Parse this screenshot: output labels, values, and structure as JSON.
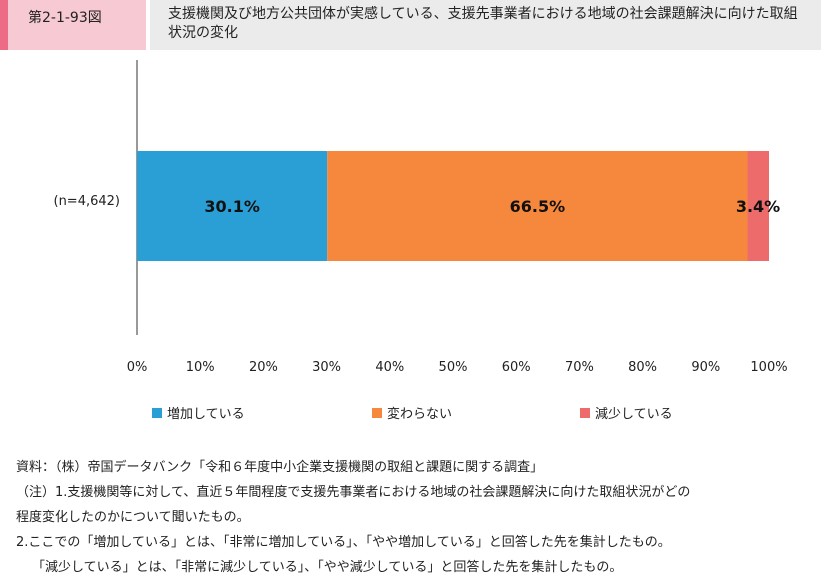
{
  "figure_number": "第2-1-93図",
  "title": "支援機関及び地方公共団体が実感している、支援先事業者における地域の社会課題解決に向けた取組状況の変化",
  "colors": {
    "increase": "#2a9fd6",
    "unchanged": "#f5883c",
    "decrease": "#ee6b6b"
  },
  "chart_data": {
    "type": "bar",
    "orientation": "horizontal",
    "stacked": true,
    "categories": [
      "(n=4,642)"
    ],
    "series": [
      {
        "name": "増加している",
        "values": [
          30.1
        ],
        "label": "30.1%"
      },
      {
        "name": "変わらない",
        "values": [
          66.5
        ],
        "label": "66.5%"
      },
      {
        "name": "減少している",
        "values": [
          3.4
        ],
        "label": "3.4%"
      }
    ],
    "xlim": [
      0,
      100
    ],
    "x_ticks": [
      "0%",
      "10%",
      "20%",
      "30%",
      "40%",
      "50%",
      "60%",
      "70%",
      "80%",
      "90%",
      "100%"
    ],
    "grid": false,
    "legend_position": "bottom"
  },
  "notes": [
    "資料：（株）帝国データバンク「令和６年度中小企業支援機関の取組と課題に関する調査」",
    "（注）1.支援機関等に対して、直近５年間程度で支援先事業者における地域の社会課題解決に向けた取組状況がどの",
    "程度変化したのかについて聞いたもの。",
    "2.ここでの「増加している」とは、「非常に増加している」、「やや増加している」と回答した先を集計したもの。",
    "「減少している」とは、「非常に減少している」、「やや減少している」と回答した先を集計したもの。"
  ]
}
